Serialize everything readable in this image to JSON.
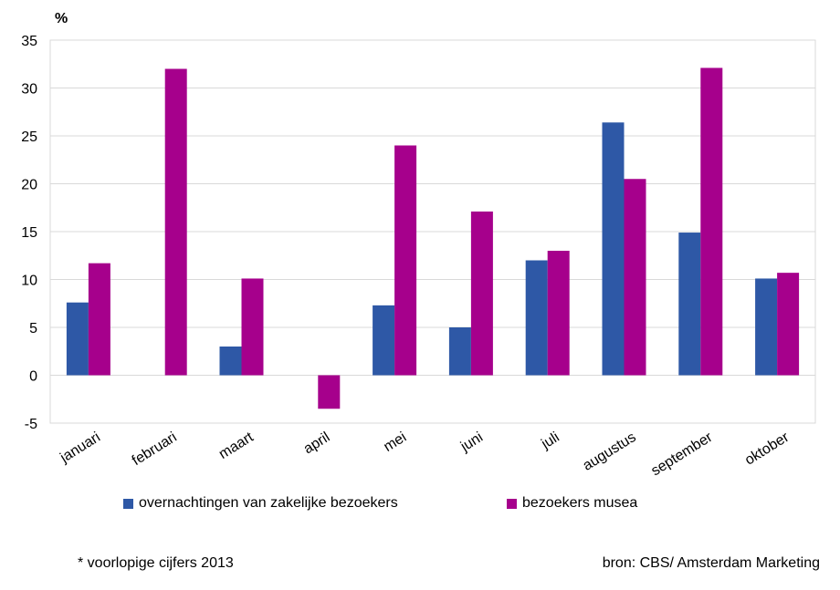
{
  "chart_data": {
    "type": "bar",
    "unit_label": "%",
    "categories": [
      "januari",
      "februari",
      "maart",
      "april",
      "mei",
      "juni",
      "juli",
      "augustus",
      "september",
      "oktober"
    ],
    "series": [
      {
        "name": "overnachtingen van zakelijke bezoekers",
        "color": "#2E58A6",
        "values": [
          7.6,
          null,
          3.0,
          null,
          7.3,
          5.0,
          12.0,
          26.4,
          14.9,
          10.1
        ]
      },
      {
        "name": "bezoekers musea",
        "color": "#A6008C",
        "values": [
          11.7,
          32.0,
          10.1,
          -3.5,
          24.0,
          17.1,
          13.0,
          20.5,
          32.1,
          10.7
        ]
      }
    ],
    "ylim": [
      -5,
      35
    ],
    "yticks": [
      -5,
      0,
      5,
      10,
      15,
      20,
      25,
      30,
      35
    ],
    "grid": true,
    "legend_position": "bottom"
  },
  "footer": {
    "note": "* voorlopige cijfers 2013",
    "source": "bron: CBS/ Amsterdam Marketing"
  }
}
